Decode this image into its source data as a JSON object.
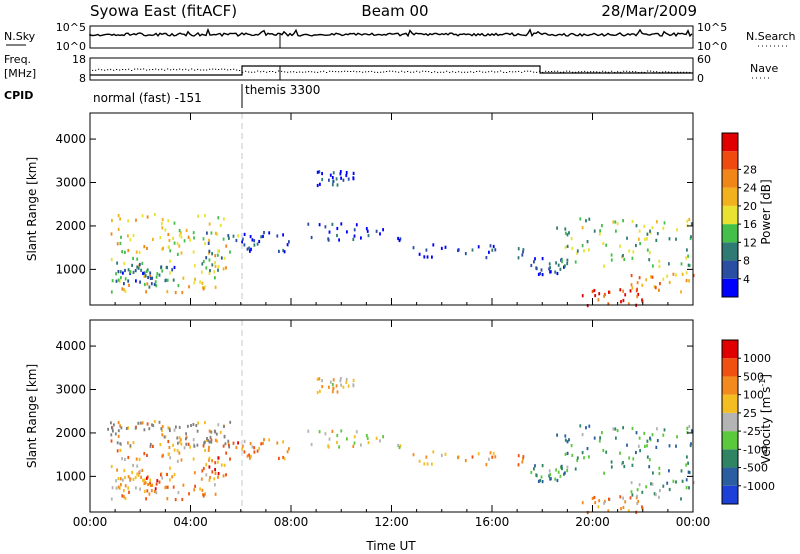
{
  "header": {
    "station": "Syowa East (fitACF)",
    "beam": "Beam 00",
    "date": "28/Mar/2009"
  },
  "panels": {
    "nsky": {
      "label": "N.Sky",
      "right_label": "N.Search",
      "left_ticks": [
        "10^5",
        "10^0"
      ],
      "right_ticks": [
        "10^5",
        "10^0"
      ]
    },
    "freq": {
      "label_line1": "Freq.",
      "label_line2": "[MHz]",
      "left_ticks": [
        "18",
        "8"
      ],
      "right_label": "Nave",
      "right_ticks": [
        "60",
        "0"
      ]
    },
    "cpid": {
      "label": "CPID",
      "modes": [
        {
          "name": "normal (fast) -151",
          "start": 0,
          "end": 6
        },
        {
          "name": "themis 3300",
          "start": 6,
          "end": 24
        }
      ]
    }
  },
  "colors": {
    "axis": "#000000",
    "dash": "#c8c8c8",
    "ground": "#808080"
  },
  "chart_data": [
    {
      "type": "heatmap",
      "title": "",
      "xlabel": "Time UT",
      "ylabel": "Slant Range [km]",
      "xlim": [
        0,
        24
      ],
      "ylim": [
        180,
        4600
      ],
      "x_ticks": [
        "00:00",
        "04:00",
        "08:00",
        "12:00",
        "16:00",
        "20:00",
        "00:00"
      ],
      "x_tick_values": [
        0,
        4,
        8,
        12,
        16,
        20,
        24
      ],
      "y_ticks": [
        1000,
        2000,
        3000,
        4000
      ],
      "colorbar": {
        "label": "Power [dB]",
        "ticks": [
          "4",
          "8",
          "12",
          "16",
          "20",
          "24",
          "28"
        ],
        "colors": [
          "#0000ff",
          "#2a4ea2",
          "#2f7a72",
          "#44c04a",
          "#e8e232",
          "#f2b21e",
          "#f08618",
          "#f04a10",
          "#e00000"
        ]
      },
      "series": [
        {
          "x": [
            0.8,
            5.4
          ],
          "y": [
            500,
            2300
          ],
          "level": 0.55
        },
        {
          "x": [
            1.0,
            2.2
          ],
          "y": [
            700,
            1200
          ],
          "level": 0.22
        },
        {
          "x": [
            2.0,
            3.4
          ],
          "y": [
            600,
            1100
          ],
          "level": 0.25
        },
        {
          "x": [
            4.4,
            5.9
          ],
          "y": [
            1000,
            1900
          ],
          "level": 0.3
        },
        {
          "x": [
            6.0,
            8.0
          ],
          "y": [
            1400,
            1900
          ],
          "level": 0.12
        },
        {
          "x": [
            8.0,
            12.8
          ],
          "y": [
            1700,
            2100
          ],
          "level": 0.1
        },
        {
          "x": [
            9.0,
            10.5
          ],
          "y": [
            2950,
            3300
          ],
          "level": 0.1
        },
        {
          "x": [
            12.8,
            17.5
          ],
          "y": [
            1300,
            1600
          ],
          "level": 0.12
        },
        {
          "x": [
            17.5,
            19.0
          ],
          "y": [
            900,
            1300
          ],
          "level": 0.15
        },
        {
          "x": [
            18.5,
            24.0
          ],
          "y": [
            1100,
            2200
          ],
          "level": 0.4
        },
        {
          "x": [
            19.5,
            22.5
          ],
          "y": [
            200,
            600
          ],
          "level": 0.85
        },
        {
          "x": [
            21.5,
            24.0
          ],
          "y": [
            500,
            1000
          ],
          "level": 0.65
        }
      ]
    },
    {
      "type": "heatmap",
      "title": "",
      "xlabel": "Time UT",
      "ylabel": "Slant Range [km]",
      "xlim": [
        0,
        24
      ],
      "ylim": [
        180,
        4600
      ],
      "x_ticks": [
        "00:00",
        "04:00",
        "08:00",
        "12:00",
        "16:00",
        "20:00",
        "00:00"
      ],
      "x_tick_values": [
        0,
        4,
        8,
        12,
        16,
        20,
        24
      ],
      "y_ticks": [
        1000,
        2000,
        3000,
        4000
      ],
      "colorbar": {
        "label": "Velocity [m s^-1]",
        "ticks": [
          "1000",
          "500",
          "100",
          "25",
          "-25",
          "-100",
          "-500",
          "-1000"
        ],
        "colors": [
          "#1e3fd8",
          "#2a5ea0",
          "#2f8464",
          "#5cc83c",
          "#b4b4b4",
          "#f4be22",
          "#f28a1e",
          "#f05010",
          "#e00000"
        ]
      },
      "series": [
        {
          "x": [
            0.8,
            5.4
          ],
          "y": [
            500,
            2300
          ],
          "level": 0.68
        },
        {
          "x": [
            1.0,
            2.2
          ],
          "y": [
            700,
            1200
          ],
          "level": 0.62
        },
        {
          "x": [
            2.0,
            3.4
          ],
          "y": [
            600,
            1100
          ],
          "level": 0.78
        },
        {
          "x": [
            4.4,
            5.9
          ],
          "y": [
            1000,
            1900
          ],
          "level": 0.78
        },
        {
          "x": [
            6.0,
            8.0
          ],
          "y": [
            1400,
            1900
          ],
          "level": 0.72
        },
        {
          "x": [
            8.0,
            12.8
          ],
          "y": [
            1700,
            2100
          ],
          "level": 0.5
        },
        {
          "x": [
            9.0,
            10.5
          ],
          "y": [
            2950,
            3300
          ],
          "level": 0.6
        },
        {
          "x": [
            12.8,
            17.5
          ],
          "y": [
            1300,
            1600
          ],
          "level": 0.68
        },
        {
          "x": [
            17.5,
            19.0
          ],
          "y": [
            900,
            1300
          ],
          "level": 0.3
        },
        {
          "x": [
            18.5,
            24.0
          ],
          "y": [
            1100,
            2200
          ],
          "level": 0.3
        },
        {
          "x": [
            19.5,
            22.5
          ],
          "y": [
            200,
            600
          ],
          "level": 0.7
        },
        {
          "x": [
            21.5,
            24.0
          ],
          "y": [
            500,
            1000
          ],
          "level": 0.35
        }
      ]
    }
  ]
}
